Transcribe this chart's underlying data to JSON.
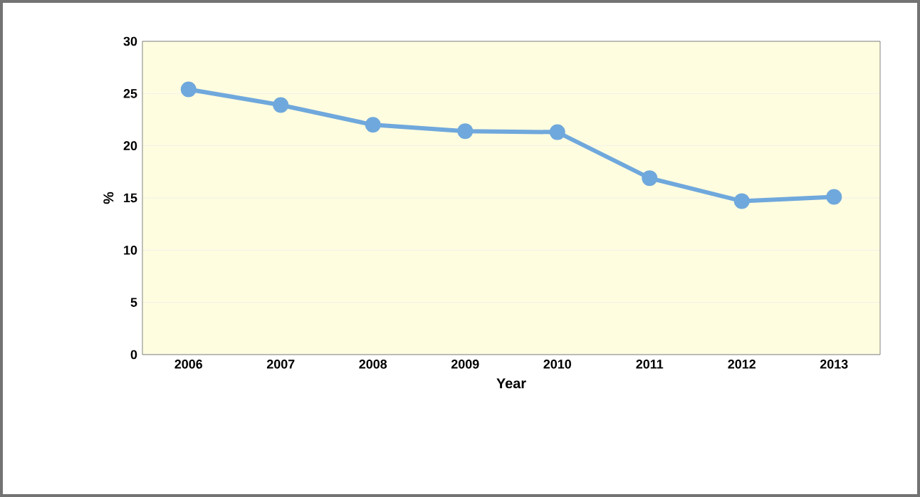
{
  "chart_data": {
    "type": "line",
    "xlabel": "Year",
    "ylabel": "%",
    "categories": [
      "2006",
      "2007",
      "2008",
      "2009",
      "2010",
      "2011",
      "2012",
      "2013"
    ],
    "values": [
      25.4,
      23.9,
      22.0,
      21.4,
      21.3,
      16.9,
      14.7,
      15.1
    ],
    "color": "#6fa8dc",
    "ylim": [
      0,
      30
    ],
    "yticks": [
      0,
      5,
      10,
      15,
      20,
      25,
      30
    ],
    "grid": "y",
    "marker": "circle",
    "line_style": "solid"
  }
}
